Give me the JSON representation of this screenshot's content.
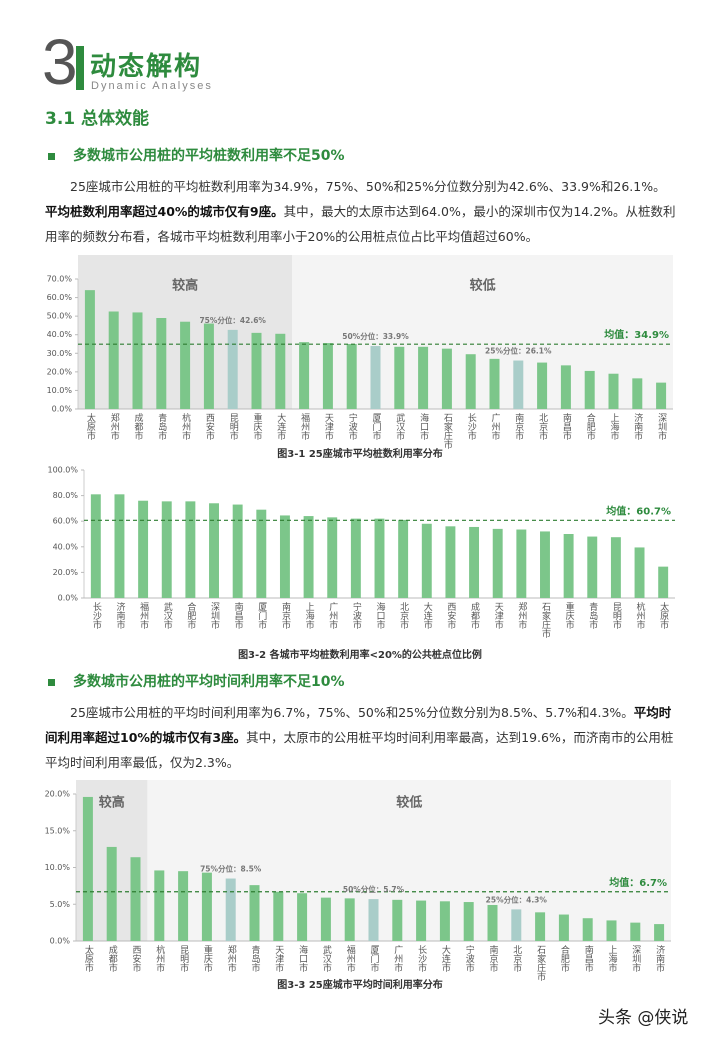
{
  "header": {
    "number": "3",
    "title": "动态解构",
    "subtitle": "Dynamic Analyses"
  },
  "section": "3.1 总体效能",
  "headings": [
    "多数城市公用桩的平均桩数利用率不足50%",
    "多数城市公用桩的平均时间利用率不足10%"
  ],
  "paragraphs": [
    {
      "runs": [
        {
          "text": "25座城市公用桩的平均桩数利用率为34.9%，75%、50%和25%分位数分别为42.6%、33.9%和26.1%。",
          "bold": false
        },
        {
          "text": "平均桩数利用率超过40%的城市仅有9座。",
          "bold": true
        },
        {
          "text": "其中，最大的太原市达到64.0%，最小的深圳市仅为14.2%。从桩数利用率的频数分布看，各城市平均桩数利用率小于20%的公用桩点位占比平均值超过60%。",
          "bold": false
        }
      ]
    },
    {
      "runs": [
        {
          "text": "25座城市公用桩的平均时间利用率为6.7%，75%、50%和25%分位数分别为8.5%、5.7%和4.3%。",
          "bold": false
        },
        {
          "text": "平均时间利用率超过10%的城市仅有3座。",
          "bold": true
        },
        {
          "text": "其中，太原市的公用桩平均时间利用率最高，达到19.6%，而济南市的公用桩平均时间利用率最低，仅为2.3%。",
          "bold": false
        }
      ]
    }
  ],
  "chart_data": [
    {
      "type": "bar",
      "caption": "图3-1 25座城市平均桩数利用率分布",
      "categories": [
        "太原市",
        "郑州市",
        "成都市",
        "青岛市",
        "杭州市",
        "西安市",
        "昆明市",
        "重庆市",
        "大连市",
        "福州市",
        "天津市",
        "宁波市",
        "厦门市",
        "武汉市",
        "海口市",
        "石家庄市",
        "长沙市",
        "广州市",
        "南京市",
        "北京市",
        "南昌市",
        "合肥市",
        "上海市",
        "济南市",
        "深圳市"
      ],
      "values": [
        64.0,
        52.5,
        52,
        49,
        47,
        46,
        42.6,
        41,
        40.5,
        36,
        35.5,
        35,
        33.9,
        33.5,
        33.5,
        32.5,
        29.5,
        27,
        26.1,
        25,
        23.5,
        20.5,
        19,
        16.5,
        14.2
      ],
      "colors": [
        "#7cc68a",
        "#7cc68a",
        "#7cc68a",
        "#7cc68a",
        "#7cc68a",
        "#7cc68a",
        "#a9cdc9",
        "#7cc68a",
        "#7cc68a",
        "#7cc68a",
        "#7cc68a",
        "#7cc68a",
        "#a9cdc9",
        "#7cc68a",
        "#7cc68a",
        "#7cc68a",
        "#7cc68a",
        "#7cc68a",
        "#a9cdc9",
        "#7cc68a",
        "#7cc68a",
        "#7cc68a",
        "#7cc68a",
        "#7cc68a",
        "#7cc68a"
      ],
      "ylim": [
        0,
        70
      ],
      "yticks": [
        {
          "value": 0,
          "label": "0.0%"
        },
        {
          "value": 10,
          "label": "10.0%"
        },
        {
          "value": 20,
          "label": "20.0%"
        },
        {
          "value": 30,
          "label": "30.0%"
        },
        {
          "value": 40,
          "label": "40.0%"
        },
        {
          "value": 50,
          "label": "50.0%"
        },
        {
          "value": 60,
          "label": "60.0%"
        },
        {
          "value": 70,
          "label": "70.0%"
        }
      ],
      "regions": [
        {
          "label": "较高",
          "from": "太原市",
          "to": "大连市",
          "fill": "#e6e6e6"
        },
        {
          "label": "较低",
          "from": "福州市",
          "to": "深圳市",
          "fill": "#f4f4f4"
        }
      ],
      "annotations": [
        {
          "category": "昆明市",
          "label": "75%分位：42.6%"
        },
        {
          "category": "厦门市",
          "label": "50%分位：33.9%"
        },
        {
          "category": "南京市",
          "label": "25%分位：26.1%"
        }
      ],
      "mean": {
        "value": 34.9,
        "label": "均值：34.9%"
      }
    },
    {
      "type": "bar",
      "caption": "图3-2 各城市平均桩数利用率<20%的公共桩点位比例",
      "categories": [
        "长沙市",
        "济南市",
        "福州市",
        "武汉市",
        "合肥市",
        "深圳市",
        "南昌市",
        "厦门市",
        "南京市",
        "上海市",
        "广州市",
        "宁波市",
        "海口市",
        "北京市",
        "大连市",
        "西安市",
        "成都市",
        "天津市",
        "郑州市",
        "石家庄市",
        "重庆市",
        "青岛市",
        "昆明市",
        "杭州市",
        "太原市"
      ],
      "values": [
        81,
        81,
        76,
        75.5,
        75.5,
        74,
        73,
        69,
        64.5,
        64,
        63,
        62,
        62,
        61,
        58,
        56,
        55.5,
        54,
        53.5,
        52,
        50,
        48,
        47.5,
        39.5,
        24.5
      ],
      "color": "#7cc68a",
      "ylim": [
        0,
        100
      ],
      "yticks": [
        {
          "value": 0,
          "label": "0.0%"
        },
        {
          "value": 20,
          "label": "20.0%"
        },
        {
          "value": 40,
          "label": "40.0%"
        },
        {
          "value": 60,
          "label": "60.0%"
        },
        {
          "value": 80,
          "label": "80.0%"
        },
        {
          "value": 100,
          "label": "100.0%"
        }
      ],
      "mean": {
        "value": 60.7,
        "label": "均值：60.7%"
      }
    },
    {
      "type": "bar",
      "caption": "图3-3 25座城市平均时间利用率分布",
      "categories": [
        "太原市",
        "成都市",
        "西安市",
        "杭州市",
        "昆明市",
        "重庆市",
        "郑州市",
        "青岛市",
        "天津市",
        "海口市",
        "武汉市",
        "福州市",
        "厦门市",
        "广州市",
        "长沙市",
        "大连市",
        "宁波市",
        "南京市",
        "北京市",
        "石家庄市",
        "合肥市",
        "南昌市",
        "上海市",
        "深圳市",
        "济南市"
      ],
      "values": [
        19.6,
        12.8,
        11.4,
        9.6,
        9.5,
        9.3,
        8.5,
        7.6,
        6.7,
        6.5,
        5.9,
        5.8,
        5.7,
        5.6,
        5.5,
        5.4,
        5.3,
        4.9,
        4.3,
        3.9,
        3.6,
        3.1,
        2.8,
        2.5,
        2.3
      ],
      "colors": [
        "#7cc68a",
        "#7cc68a",
        "#7cc68a",
        "#7cc68a",
        "#7cc68a",
        "#7cc68a",
        "#a9cdc9",
        "#7cc68a",
        "#7cc68a",
        "#7cc68a",
        "#7cc68a",
        "#7cc68a",
        "#a9cdc9",
        "#7cc68a",
        "#7cc68a",
        "#7cc68a",
        "#7cc68a",
        "#7cc68a",
        "#a9cdc9",
        "#7cc68a",
        "#7cc68a",
        "#7cc68a",
        "#7cc68a",
        "#7cc68a",
        "#7cc68a"
      ],
      "ylim": [
        0,
        20
      ],
      "yticks": [
        {
          "value": 0,
          "label": "0.0%"
        },
        {
          "value": 5,
          "label": "5.0%"
        },
        {
          "value": 10,
          "label": "10.0%"
        },
        {
          "value": 15,
          "label": "15.0%"
        },
        {
          "value": 20,
          "label": "20.0%"
        }
      ],
      "regions": [
        {
          "label": "较高",
          "from": "太原市",
          "to": "西安市",
          "fill": "#e6e6e6"
        },
        {
          "label": "较低",
          "from": "杭州市",
          "to": "济南市",
          "fill": "#f4f4f4"
        }
      ],
      "annotations": [
        {
          "category": "郑州市",
          "label": "75%分位：8.5%"
        },
        {
          "category": "厦门市",
          "label": "50%分位：5.7%"
        },
        {
          "category": "北京市",
          "label": "25%分位：4.3%"
        }
      ],
      "mean": {
        "value": 6.7,
        "label": "均值：6.7%"
      }
    }
  ],
  "watermark": "头条 @侠说"
}
